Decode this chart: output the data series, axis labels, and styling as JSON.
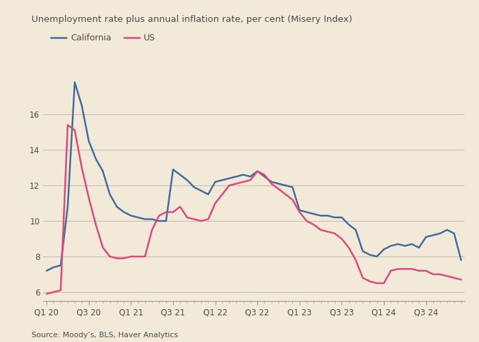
{
  "title": "Unemployment rate plus annual inflation rate, per cent (Misery Index)",
  "source": "Source: Moody’s, BLS, Haver Analytics",
  "california_label": "California",
  "us_label": "US",
  "california_color": "#3d6b9e",
  "us_color": "#e0457b",
  "background_color": "#f2e9d8",
  "grid_color": "#c8bfb0",
  "text_color": "#4a4a4a",
  "ylim": [
    5.5,
    18.2
  ],
  "yticks": [
    6,
    8,
    10,
    12,
    14,
    16
  ],
  "xtick_positions": [
    0,
    6,
    12,
    18,
    24,
    30,
    36,
    42,
    48,
    54
  ],
  "xtick_labels": [
    "Q1 20",
    "Q3 20",
    "Q1 21",
    "Q3 21",
    "Q1 22",
    "Q3 22",
    "Q1 23",
    "Q3 23",
    "Q1 24",
    "Q3 24"
  ],
  "line_width": 1.8,
  "california": [
    7.2,
    7.4,
    7.5,
    10.8,
    17.8,
    16.5,
    14.5,
    13.5,
    12.8,
    11.5,
    10.8,
    10.5,
    10.3,
    10.2,
    10.1,
    10.1,
    10.0,
    10.0,
    12.9,
    12.6,
    12.3,
    11.9,
    11.7,
    11.5,
    12.2,
    12.3,
    12.4,
    12.5,
    12.6,
    12.5,
    12.8,
    12.5,
    12.2,
    12.1,
    12.0,
    11.9,
    10.6,
    10.5,
    10.4,
    10.3,
    10.3,
    10.2,
    10.2,
    9.8,
    9.5,
    8.3,
    8.1,
    8.0,
    8.4,
    8.6,
    8.7,
    8.6,
    8.7,
    8.5,
    9.1,
    9.2,
    9.3,
    9.5,
    9.3,
    7.8
  ],
  "us": [
    5.9,
    6.0,
    6.1,
    15.4,
    15.1,
    13.0,
    11.3,
    9.8,
    8.5,
    8.0,
    7.9,
    7.9,
    8.0,
    8.0,
    8.0,
    9.5,
    10.3,
    10.5,
    10.5,
    10.8,
    10.2,
    10.1,
    10.0,
    10.1,
    11.0,
    11.5,
    12.0,
    12.1,
    12.2,
    12.3,
    12.8,
    12.6,
    12.1,
    11.8,
    11.5,
    11.2,
    10.5,
    10.0,
    9.8,
    9.5,
    9.4,
    9.3,
    9.0,
    8.5,
    7.8,
    6.8,
    6.6,
    6.5,
    6.5,
    7.2,
    7.3,
    7.3,
    7.3,
    7.2,
    7.2,
    7.0,
    7.0,
    6.9,
    6.8,
    6.7
  ]
}
